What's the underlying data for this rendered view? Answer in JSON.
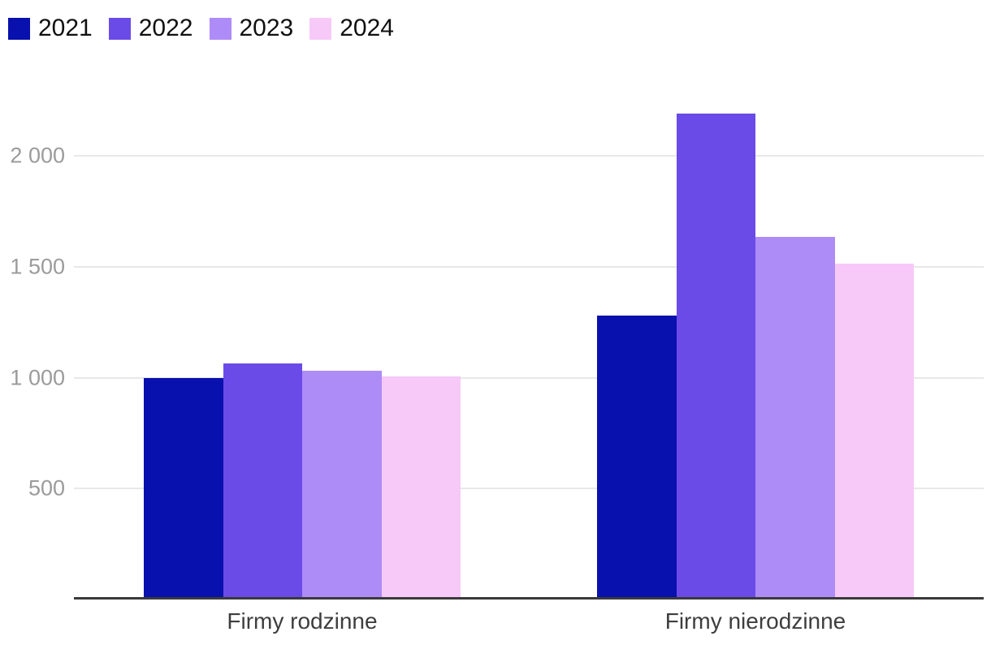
{
  "chart_data": {
    "type": "bar",
    "title": "",
    "xlabel": "",
    "ylabel": "",
    "categories": [
      "Firmy rodzinne",
      "Firmy nierodzinne"
    ],
    "series": [
      {
        "name": "2021",
        "color": "#0810AD",
        "values": [
          1000,
          1280
        ]
      },
      {
        "name": "2022",
        "color": "#6A4BE8",
        "values": [
          1065,
          2190
        ]
      },
      {
        "name": "2023",
        "color": "#AE8CF7",
        "values": [
          1030,
          1635
        ]
      },
      {
        "name": "2024",
        "color": "#F7C9F8",
        "values": [
          1005,
          1515
        ]
      }
    ],
    "yticks": [
      500,
      1000,
      1500,
      2000
    ],
    "ytick_labels": [
      "500",
      "1 000",
      "1 500",
      "2 000"
    ],
    "ylim": [
      0,
      2335
    ],
    "grid": true,
    "legend_position": "top-left"
  },
  "colors": {
    "background": "#ffffff",
    "gridline": "#e8e8e8",
    "axis_line": "#3a3a3a",
    "tick_label": "#9b9b9b",
    "category_label": "#3e3e3e",
    "legend_text": "#101010"
  }
}
